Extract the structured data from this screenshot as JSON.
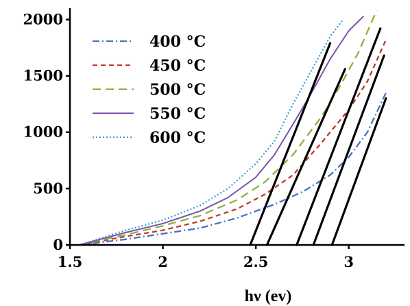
{
  "chart_data": {
    "type": "line",
    "xlabel": "hν (ev)",
    "ylabel": "",
    "xlim": [
      1.5,
      3.3
    ],
    "ylim": [
      0,
      2100
    ],
    "xticks": [
      {
        "value": 1.5,
        "label": "1.5"
      },
      {
        "value": 2,
        "label": "2"
      },
      {
        "value": 2.5,
        "label": "2.5"
      },
      {
        "value": 3,
        "label": "3"
      }
    ],
    "yticks": [
      {
        "value": 0,
        "label": "0"
      },
      {
        "value": 500,
        "label": "500"
      },
      {
        "value": 1000,
        "label": "1000"
      },
      {
        "value": 1500,
        "label": "1500"
      },
      {
        "value": 2000,
        "label": "2000"
      }
    ],
    "grid": false,
    "legend_position": "top-left",
    "series": [
      {
        "name": "400 °C",
        "color": "#4472c4",
        "dash": "dashdot",
        "x": [
          1.55,
          1.8,
          2.0,
          2.2,
          2.4,
          2.6,
          2.75,
          2.9,
          3.0,
          3.1,
          3.2
        ],
        "y": [
          0,
          50,
          100,
          150,
          240,
          360,
          470,
          620,
          780,
          1000,
          1350
        ]
      },
      {
        "name": "450 °C",
        "color": "#c0392b",
        "dash": "dashed",
        "x": [
          1.55,
          1.8,
          2.0,
          2.2,
          2.4,
          2.55,
          2.7,
          2.85,
          3.0,
          3.1,
          3.2
        ],
        "y": [
          0,
          75,
          130,
          210,
          320,
          450,
          620,
          900,
          1200,
          1450,
          1820
        ]
      },
      {
        "name": "500 °C",
        "color": "#8db33e",
        "dash": "longdash",
        "x": [
          1.55,
          1.8,
          2.0,
          2.2,
          2.4,
          2.55,
          2.7,
          2.85,
          2.95,
          3.05,
          3.15
        ],
        "y": [
          0,
          90,
          170,
          260,
          400,
          560,
          800,
          1130,
          1400,
          1700,
          2080
        ]
      },
      {
        "name": "550 °C",
        "color": "#7b52ab",
        "dash": "solid",
        "x": [
          1.55,
          1.8,
          2.0,
          2.2,
          2.35,
          2.5,
          2.6,
          2.7,
          2.8,
          2.9,
          3.0,
          3.08
        ],
        "y": [
          0,
          110,
          190,
          300,
          420,
          600,
          800,
          1070,
          1350,
          1650,
          1900,
          2030
        ]
      },
      {
        "name": "600 °C",
        "color": "#3b9fd1",
        "dash": "dotted",
        "x": [
          1.55,
          1.8,
          2.0,
          2.2,
          2.35,
          2.5,
          2.6,
          2.7,
          2.8,
          2.9,
          2.97
        ],
        "y": [
          0,
          130,
          220,
          350,
          500,
          720,
          920,
          1250,
          1550,
          1850,
          2000
        ]
      }
    ],
    "tangent_lines": [
      {
        "x": [
          2.47,
          2.9
        ],
        "y": [
          0,
          1790
        ]
      },
      {
        "x": [
          2.56,
          2.98
        ],
        "y": [
          0,
          1560
        ]
      },
      {
        "x": [
          2.72,
          3.17
        ],
        "y": [
          0,
          1920
        ]
      },
      {
        "x": [
          2.81,
          3.19
        ],
        "y": [
          0,
          1680
        ]
      },
      {
        "x": [
          2.91,
          3.2
        ],
        "y": [
          0,
          1300
        ]
      }
    ]
  }
}
